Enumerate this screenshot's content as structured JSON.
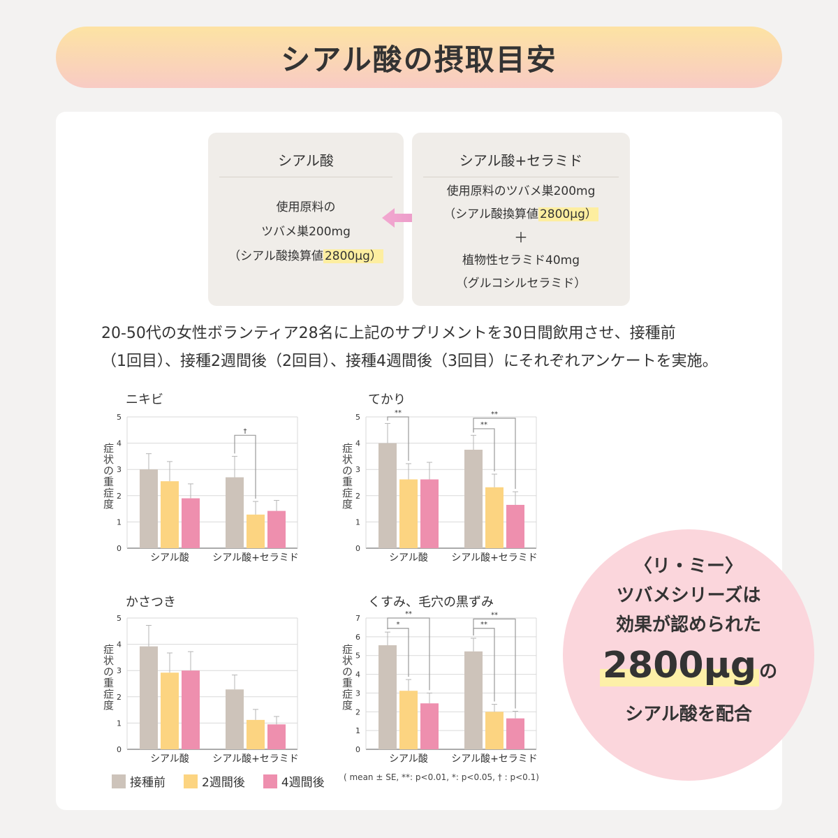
{
  "header": {
    "title": "シアル酸の摂取目安"
  },
  "box_left": {
    "title": "シアル酸",
    "lines": [
      "使用原料の",
      "ツバメ巣200mg"
    ],
    "hl_prefix": "（シアル酸換算値",
    "hl": "2800μg",
    "hl_suffix": "）"
  },
  "box_right": {
    "title": "シアル酸+セラミド",
    "line1": "使用原料のツバメ巣200mg",
    "hl_prefix": "（シアル酸換算値",
    "hl": "2800μg",
    "hl_suffix": "）",
    "plus": "＋",
    "line3": "植物性セラミド40mg",
    "line4": "（グルコシルセラミド）"
  },
  "description": {
    "line1": "20-50代の女性ボランティア28名に上記のサプリメントを30日間飲用させ、接種前",
    "line2": "（1回目）、接種2週間後（2回目）、接種4週間後（3回目）にそれぞれアンケートを実施。"
  },
  "colors": {
    "before": "#cdc3ba",
    "week2": "#fcd481",
    "week4": "#ee8fae"
  },
  "chart_data": [
    {
      "type": "bar",
      "title": "ニキビ",
      "ylabel": "症状の重症度",
      "ylim": [
        0,
        5
      ],
      "yticks": [
        0,
        1,
        2,
        3,
        4,
        5
      ],
      "categories": [
        "シアル酸",
        "シアル酸+セラミド"
      ],
      "series": [
        {
          "name": "接種前",
          "values": [
            3.0,
            2.7
          ],
          "errors": [
            0.6,
            0.8
          ]
        },
        {
          "name": "2週間後",
          "values": [
            2.55,
            1.28
          ],
          "errors": [
            0.75,
            0.5
          ]
        },
        {
          "name": "4週間後",
          "values": [
            1.9,
            1.42
          ],
          "errors": [
            0.55,
            0.4
          ]
        }
      ],
      "annotations": [
        {
          "group": 1,
          "from": 0,
          "to": 1,
          "label": "†",
          "level": 4.3
        }
      ]
    },
    {
      "type": "bar",
      "title": "てかり",
      "ylabel": "症状の重症度",
      "ylim": [
        0,
        5
      ],
      "yticks": [
        0,
        1,
        2,
        3,
        4,
        5
      ],
      "categories": [
        "シアル酸",
        "シアル酸+セラミド"
      ],
      "series": [
        {
          "name": "接種前",
          "values": [
            4.0,
            3.75
          ],
          "errors": [
            0.75,
            0.55
          ]
        },
        {
          "name": "2週間後",
          "values": [
            2.62,
            2.32
          ],
          "errors": [
            0.6,
            0.5
          ]
        },
        {
          "name": "4週間後",
          "values": [
            2.62,
            1.65
          ],
          "errors": [
            0.65,
            0.5
          ]
        }
      ],
      "annotations": [
        {
          "group": 0,
          "from": 0,
          "to": 1,
          "label": "**",
          "level": 5.0
        },
        {
          "group": 1,
          "from": 0,
          "to": 1,
          "label": "**",
          "level": 4.55
        },
        {
          "group": 1,
          "from": 0,
          "to": 2,
          "label": "**",
          "level": 4.95
        }
      ]
    },
    {
      "type": "bar",
      "title": "かさつき",
      "ylabel": "症状の重症度",
      "ylim": [
        0,
        5
      ],
      "yticks": [
        0,
        1,
        2,
        3,
        4,
        5
      ],
      "categories": [
        "シアル酸",
        "シアル酸+セラミド"
      ],
      "series": [
        {
          "name": "接種前",
          "values": [
            3.92,
            2.28
          ],
          "errors": [
            0.8,
            0.55
          ]
        },
        {
          "name": "2週間後",
          "values": [
            2.92,
            1.12
          ],
          "errors": [
            0.75,
            0.4
          ]
        },
        {
          "name": "4週間後",
          "values": [
            3.0,
            0.95
          ],
          "errors": [
            0.72,
            0.3
          ]
        }
      ],
      "annotations": []
    },
    {
      "type": "bar",
      "title": "くすみ、毛穴の黒ずみ",
      "ylabel": "症状の重症度",
      "ylim": [
        0,
        7
      ],
      "yticks": [
        0,
        1,
        2,
        3,
        4,
        5,
        6,
        7
      ],
      "categories": [
        "シアル酸",
        "シアル酸+セラミド"
      ],
      "series": [
        {
          "name": "接種前",
          "values": [
            5.55,
            5.22
          ],
          "errors": [
            0.7,
            0.7
          ]
        },
        {
          "name": "2週間後",
          "values": [
            3.12,
            2.0
          ],
          "errors": [
            0.6,
            0.4
          ]
        },
        {
          "name": "4週間後",
          "values": [
            2.45,
            1.65
          ],
          "errors": [
            0.55,
            0.38
          ]
        }
      ],
      "annotations": [
        {
          "group": 0,
          "from": 0,
          "to": 1,
          "label": "*",
          "level": 6.45
        },
        {
          "group": 0,
          "from": 0,
          "to": 2,
          "label": "**",
          "level": 7.0
        },
        {
          "group": 1,
          "from": 0,
          "to": 1,
          "label": "**",
          "level": 6.45
        },
        {
          "group": 1,
          "from": 0,
          "to": 2,
          "label": "**",
          "level": 6.95
        }
      ]
    }
  ],
  "legend": {
    "before": "接種前",
    "week2": "2週間後",
    "week4": "4週間後"
  },
  "note": "( mean ± SE, **: p<0.01, *: p<0.05, † : p<0.1)",
  "badge": {
    "line1": "〈リ・ミー〉",
    "line2": "ツバメシリーズは",
    "line3": "効果が認められた",
    "amount": "2800μg",
    "amount_suffix": "の",
    "line5": "シアル酸を配合"
  }
}
